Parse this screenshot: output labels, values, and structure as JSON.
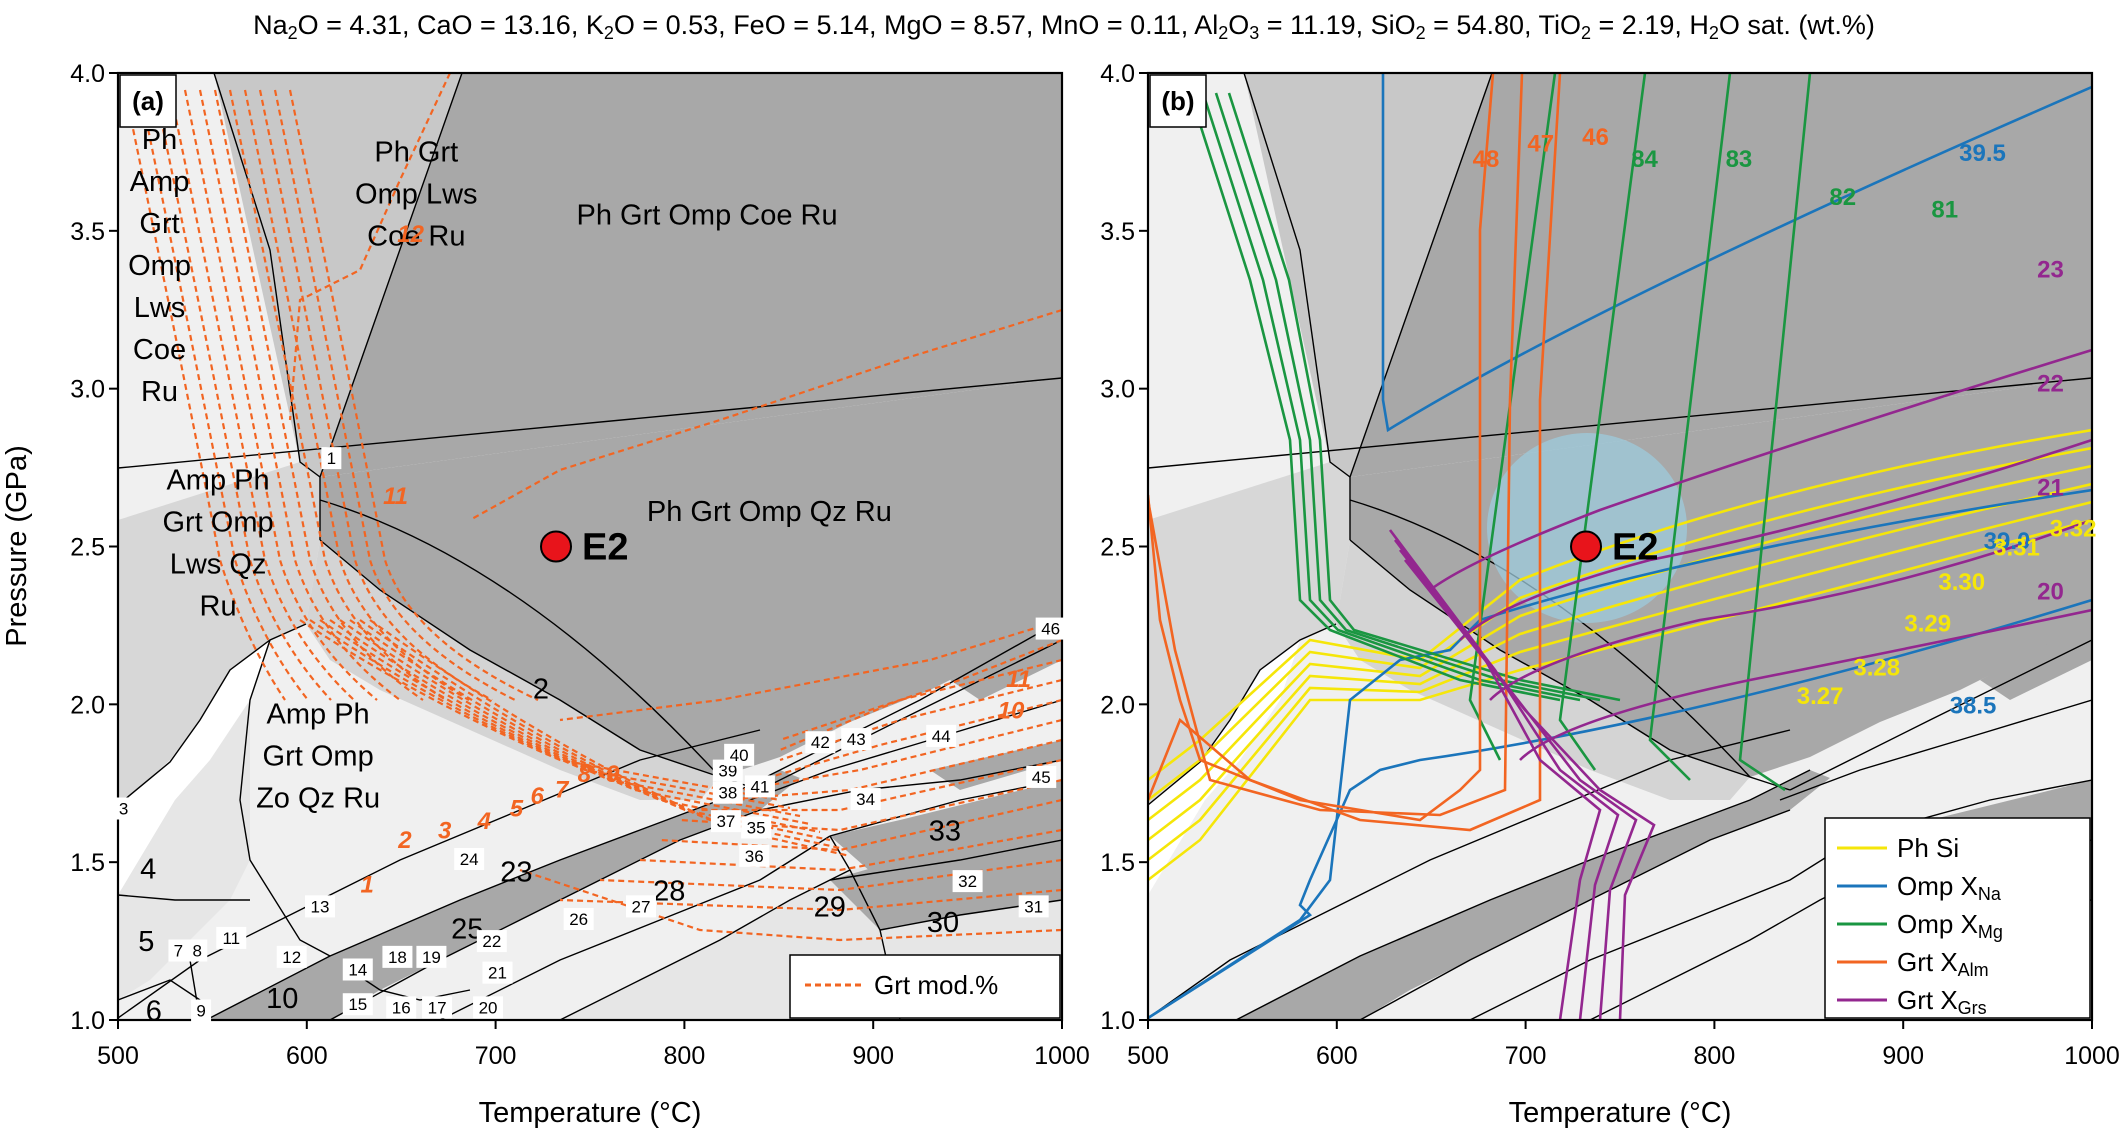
{
  "header": {
    "composition": [
      {
        "pre": "Na",
        "sub": "2",
        "post": "O = 4.31,"
      },
      {
        "pre": "CaO = 13.16,",
        "sub": "",
        "post": ""
      },
      {
        "pre": "K",
        "sub": "2",
        "post": "O = 0.53,"
      },
      {
        "pre": "FeO = 5.14,",
        "sub": "",
        "post": ""
      },
      {
        "pre": "MgO = 8.57,",
        "sub": "",
        "post": ""
      },
      {
        "pre": "MnO = 0.11,",
        "sub": "",
        "post": ""
      },
      {
        "pre": "Al",
        "sub": "2",
        "post": "O"
      },
      {
        "pre": "",
        "sub": "3",
        "post": " = 11.19,"
      },
      {
        "pre": "SiO",
        "sub": "2",
        "post": " = 54.80,"
      },
      {
        "pre": "TiO",
        "sub": "2",
        "post": " = 2.19,"
      },
      {
        "pre": "H",
        "sub": "2",
        "post": "O sat. (wt.%)"
      }
    ]
  },
  "axes": {
    "x_title": "Temperature (°C)",
    "y_title": "Pressure (GPa)",
    "x_ticks": [
      "500",
      "600",
      "700",
      "800",
      "900",
      "1000"
    ],
    "y_ticks": [
      "1.0",
      "1.5",
      "2.0",
      "2.5",
      "3.0",
      "3.5",
      "4.0"
    ],
    "xlim": [
      500,
      1000
    ],
    "ylim": [
      1.0,
      4.0
    ]
  },
  "sample": {
    "name": "E2",
    "T": 732,
    "P": 2.5,
    "color": "#e8141b"
  },
  "panel_a": {
    "tag": "(a)",
    "fields": [
      {
        "lines": [
          "Ph Grt",
          "Omp Lws",
          "Coe Ru"
        ],
        "T": 658,
        "P": 3.72
      },
      {
        "lines": [
          "Ph Grt Omp Coe Ru"
        ],
        "T": 812,
        "P": 3.52
      },
      {
        "lines": [
          "Ph Grt Omp Qz Ru"
        ],
        "T": 845,
        "P": 2.58
      },
      {
        "lines": [
          "Ph",
          "Amp",
          "Grt",
          "Omp",
          "Lws",
          "Coe",
          "Ru"
        ],
        "T": 522,
        "P": 3.76
      },
      {
        "lines": [
          "Amp Ph",
          "Grt Omp",
          "Lws Qz",
          "Ru"
        ],
        "T": 553,
        "P": 2.68
      },
      {
        "lines": [
          "Amp Ph",
          "Grt Omp",
          "Zo Qz Ru"
        ],
        "T": 606,
        "P": 1.94
      }
    ],
    "big_numbers": [
      {
        "t": "2",
        "T": 724,
        "P": 2.05
      },
      {
        "t": "23",
        "T": 711,
        "P": 1.47
      },
      {
        "t": "25",
        "T": 685,
        "P": 1.29
      },
      {
        "t": "28",
        "T": 792,
        "P": 1.41
      },
      {
        "t": "29",
        "T": 877,
        "P": 1.36
      },
      {
        "t": "30",
        "T": 937,
        "P": 1.31
      },
      {
        "t": "33",
        "T": 938,
        "P": 1.6
      },
      {
        "t": "10",
        "T": 587,
        "P": 1.07
      },
      {
        "t": "4",
        "T": 516,
        "P": 1.48
      },
      {
        "t": "5",
        "T": 515,
        "P": 1.25
      },
      {
        "t": "6",
        "T": 519,
        "P": 1.03
      }
    ],
    "small_numbers": [
      {
        "t": "1",
        "T": 613,
        "P": 2.78
      },
      {
        "t": "3",
        "T": 503,
        "P": 1.67
      },
      {
        "t": "7",
        "T": 532,
        "P": 1.22
      },
      {
        "t": "8",
        "T": 542,
        "P": 1.22
      },
      {
        "t": "9",
        "T": 544,
        "P": 1.03
      },
      {
        "t": "11",
        "T": 560,
        "P": 1.26
      },
      {
        "t": "12",
        "T": 592,
        "P": 1.2
      },
      {
        "t": "13",
        "T": 607,
        "P": 1.36
      },
      {
        "t": "14",
        "T": 627,
        "P": 1.16
      },
      {
        "t": "15",
        "T": 627,
        "P": 1.05
      },
      {
        "t": "16",
        "T": 650,
        "P": 1.04
      },
      {
        "t": "17",
        "T": 669,
        "P": 1.04
      },
      {
        "t": "18",
        "T": 648,
        "P": 1.2
      },
      {
        "t": "19",
        "T": 666,
        "P": 1.2
      },
      {
        "t": "20",
        "T": 696,
        "P": 1.04
      },
      {
        "t": "21",
        "T": 701,
        "P": 1.15
      },
      {
        "t": "22",
        "T": 698,
        "P": 1.25
      },
      {
        "t": "24",
        "T": 686,
        "P": 1.51
      },
      {
        "t": "26",
        "T": 744,
        "P": 1.32
      },
      {
        "t": "27",
        "T": 777,
        "P": 1.36
      },
      {
        "t": "31",
        "T": 985,
        "P": 1.36
      },
      {
        "t": "32",
        "T": 950,
        "P": 1.44
      },
      {
        "t": "34",
        "T": 896,
        "P": 1.7
      },
      {
        "t": "35",
        "T": 838,
        "P": 1.61
      },
      {
        "t": "36",
        "T": 837,
        "P": 1.52
      },
      {
        "t": "37",
        "T": 822,
        "P": 1.63
      },
      {
        "t": "38",
        "T": 823,
        "P": 1.72
      },
      {
        "t": "39",
        "T": 823,
        "P": 1.79
      },
      {
        "t": "40",
        "T": 829,
        "P": 1.84
      },
      {
        "t": "41",
        "T": 840,
        "P": 1.74
      },
      {
        "t": "42",
        "T": 872,
        "P": 1.88
      },
      {
        "t": "43",
        "T": 891,
        "P": 1.89
      },
      {
        "t": "44",
        "T": 936,
        "P": 1.9
      },
      {
        "t": "45",
        "T": 989,
        "P": 1.77
      },
      {
        "t": "46",
        "T": 994,
        "P": 2.24
      }
    ],
    "isopleth_labels": [
      {
        "t": "12",
        "T": 655,
        "P": 3.49
      },
      {
        "t": "11",
        "T": 647,
        "P": 2.66
      },
      {
        "t": "10",
        "T": 973,
        "P": 1.98
      },
      {
        "t": "11",
        "T": 977,
        "P": 2.08
      },
      {
        "t": "9",
        "T": 762,
        "P": 1.78
      },
      {
        "t": "8",
        "T": 747,
        "P": 1.78
      },
      {
        "t": "7",
        "T": 735,
        "P": 1.73
      },
      {
        "t": "6",
        "T": 722,
        "P": 1.71
      },
      {
        "t": "5",
        "T": 711,
        "P": 1.67
      },
      {
        "t": "4",
        "T": 694,
        "P": 1.63
      },
      {
        "t": "3",
        "T": 673,
        "P": 1.6
      },
      {
        "t": "2",
        "T": 652,
        "P": 1.57
      },
      {
        "t": "1",
        "T": 632,
        "P": 1.43
      }
    ],
    "legend": {
      "label": "Grt mod.%",
      "color": "#f26522"
    }
  },
  "panel_b": {
    "tag": "(b)",
    "contour_labels": [
      {
        "t": "39.5",
        "T": 942,
        "P": 3.75,
        "c": "#1b75bb"
      },
      {
        "t": "39.0",
        "T": 955,
        "P": 2.52,
        "c": "#1b75bb"
      },
      {
        "t": "38.5",
        "T": 937,
        "P": 2.0,
        "c": "#1b75bb"
      },
      {
        "t": "84",
        "T": 763,
        "P": 3.73,
        "c": "#1a9641"
      },
      {
        "t": "83",
        "T": 813,
        "P": 3.73,
        "c": "#1a9641"
      },
      {
        "t": "82",
        "T": 868,
        "P": 3.61,
        "c": "#1a9641"
      },
      {
        "t": "81",
        "T": 922,
        "P": 3.57,
        "c": "#1a9641"
      },
      {
        "t": "48",
        "T": 679,
        "P": 3.73,
        "c": "#f26522"
      },
      {
        "t": "47",
        "T": 708,
        "P": 3.78,
        "c": "#f26522"
      },
      {
        "t": "46",
        "T": 737,
        "P": 3.8,
        "c": "#f26522"
      },
      {
        "t": "23",
        "T": 978,
        "P": 3.38,
        "c": "#93278f"
      },
      {
        "t": "22",
        "T": 978,
        "P": 3.02,
        "c": "#93278f"
      },
      {
        "t": "21",
        "T": 978,
        "P": 2.69,
        "c": "#93278f"
      },
      {
        "t": "20",
        "T": 978,
        "P": 2.36,
        "c": "#93278f"
      },
      {
        "t": "3.32",
        "T": 990,
        "P": 2.56,
        "c": "#f5e609"
      },
      {
        "t": "3.31",
        "T": 960,
        "P": 2.5,
        "c": "#f5e609"
      },
      {
        "t": "3.30",
        "T": 931,
        "P": 2.39,
        "c": "#f5e609"
      },
      {
        "t": "3.29",
        "T": 913,
        "P": 2.26,
        "c": "#f5e609"
      },
      {
        "t": "3.28",
        "T": 886,
        "P": 2.12,
        "c": "#f5e609"
      },
      {
        "t": "3.27",
        "T": 856,
        "P": 2.03,
        "c": "#f5e609"
      }
    ],
    "legend": [
      {
        "pre": "Ph Si",
        "sub": "",
        "color": "#f5e609"
      },
      {
        "pre": "Omp X",
        "sub": "Na",
        "color": "#1b75bb"
      },
      {
        "pre": "Omp X",
        "sub": "Mg",
        "color": "#1a9641"
      },
      {
        "pre": "Grt X",
        "sub": "Alm",
        "color": "#f26522"
      },
      {
        "pre": "Grt X",
        "sub": "Grs",
        "color": "#93278f"
      }
    ]
  }
}
